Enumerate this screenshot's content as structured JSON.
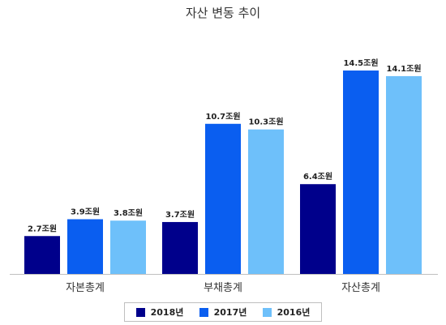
{
  "chart_data": {
    "type": "bar",
    "title": "자산 변동 추이",
    "categories": [
      "자본총계",
      "부채총계",
      "자산총계"
    ],
    "series": [
      {
        "name": "2018년",
        "color": "#00008b",
        "values": [
          2.7,
          3.7,
          6.4
        ],
        "labels": [
          "2.7조원",
          "3.7조원",
          "6.4조원"
        ]
      },
      {
        "name": "2017년",
        "color": "#0a5ef0",
        "values": [
          3.9,
          10.7,
          14.5
        ],
        "labels": [
          "3.9조원",
          "10.7조원",
          "14.5조원"
        ]
      },
      {
        "name": "2016년",
        "color": "#6ec0fa",
        "values": [
          3.8,
          10.3,
          14.1
        ],
        "labels": [
          "3.8조원",
          "10.3조원",
          "14.1조원"
        ]
      }
    ],
    "unit": "조원",
    "legend_position": "bottom",
    "grid": false
  }
}
